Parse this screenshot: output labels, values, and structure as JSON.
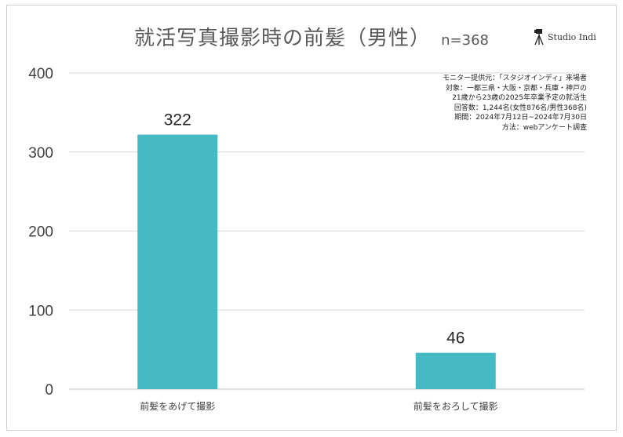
{
  "chart_data": {
    "type": "bar",
    "title": "就活写真撮影時の前髪（男性）",
    "subtitle": "n=368",
    "categories": [
      "前髪をあげて撮影",
      "前髪をおろして撮影"
    ],
    "values": [
      322,
      46
    ],
    "ylim": [
      0,
      400
    ],
    "yticks": [
      0,
      100,
      200,
      300,
      400
    ],
    "grid": true,
    "bar_color": "#45BAC5",
    "xlabel": "",
    "ylabel": ""
  },
  "logo": {
    "text": "Studio Indi",
    "icon": "camera-tripod-icon"
  },
  "notes": [
    "モニター提供元：「スタジオインディ」来場者",
    "対象：一都三県・大阪・京都・兵庫・神戸の",
    "21歳から23歳の2025年卒業予定の就活生",
    "回答数：1,244名(女性876名/男性368名)",
    "期間：2024年7月12日~2024年7月30日",
    "方法：webアンケート調査"
  ]
}
